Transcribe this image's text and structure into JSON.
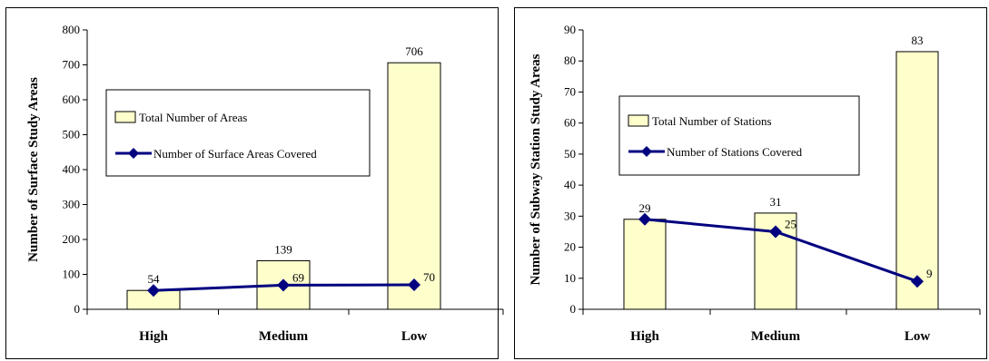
{
  "colors": {
    "bar_fill": "#FFFFCC",
    "bar_stroke": "#000000",
    "line": "#000080"
  },
  "chart_data": [
    {
      "type": "bar",
      "categories": [
        "High",
        "Medium",
        "Low"
      ],
      "ylabel": "Number of Surface Study Areas",
      "xlabel": "",
      "ylim": [
        0,
        800
      ],
      "yticks": [
        0,
        100,
        200,
        300,
        400,
        500,
        600,
        700,
        800
      ],
      "legend_position": "center-right",
      "series": [
        {
          "name": "Total Number of Areas",
          "kind": "bar",
          "values": [
            54,
            139,
            706
          ]
        },
        {
          "name": "Number of Surface Areas Covered",
          "kind": "line",
          "marker": "diamond",
          "values": [
            54,
            69,
            70
          ]
        }
      ],
      "data_labels": {
        "bar": [
          "54",
          "139",
          "706"
        ],
        "line": [
          "",
          "69",
          "70"
        ]
      }
    },
    {
      "type": "bar",
      "categories": [
        "High",
        "Medium",
        "Low"
      ],
      "ylabel": "Number of Subway Station Study Areas",
      "xlabel": "",
      "ylim": [
        0,
        90
      ],
      "yticks": [
        0,
        10,
        20,
        30,
        40,
        50,
        60,
        70,
        80,
        90
      ],
      "legend_position": "center-left",
      "series": [
        {
          "name": "Total Number of Stations",
          "kind": "bar",
          "values": [
            29,
            31,
            83
          ]
        },
        {
          "name": "Number of Stations Covered",
          "kind": "line",
          "marker": "diamond",
          "values": [
            29,
            25,
            9
          ]
        }
      ],
      "data_labels": {
        "bar": [
          "29",
          "31",
          "83"
        ],
        "line": [
          "",
          "25",
          "9"
        ]
      }
    }
  ]
}
